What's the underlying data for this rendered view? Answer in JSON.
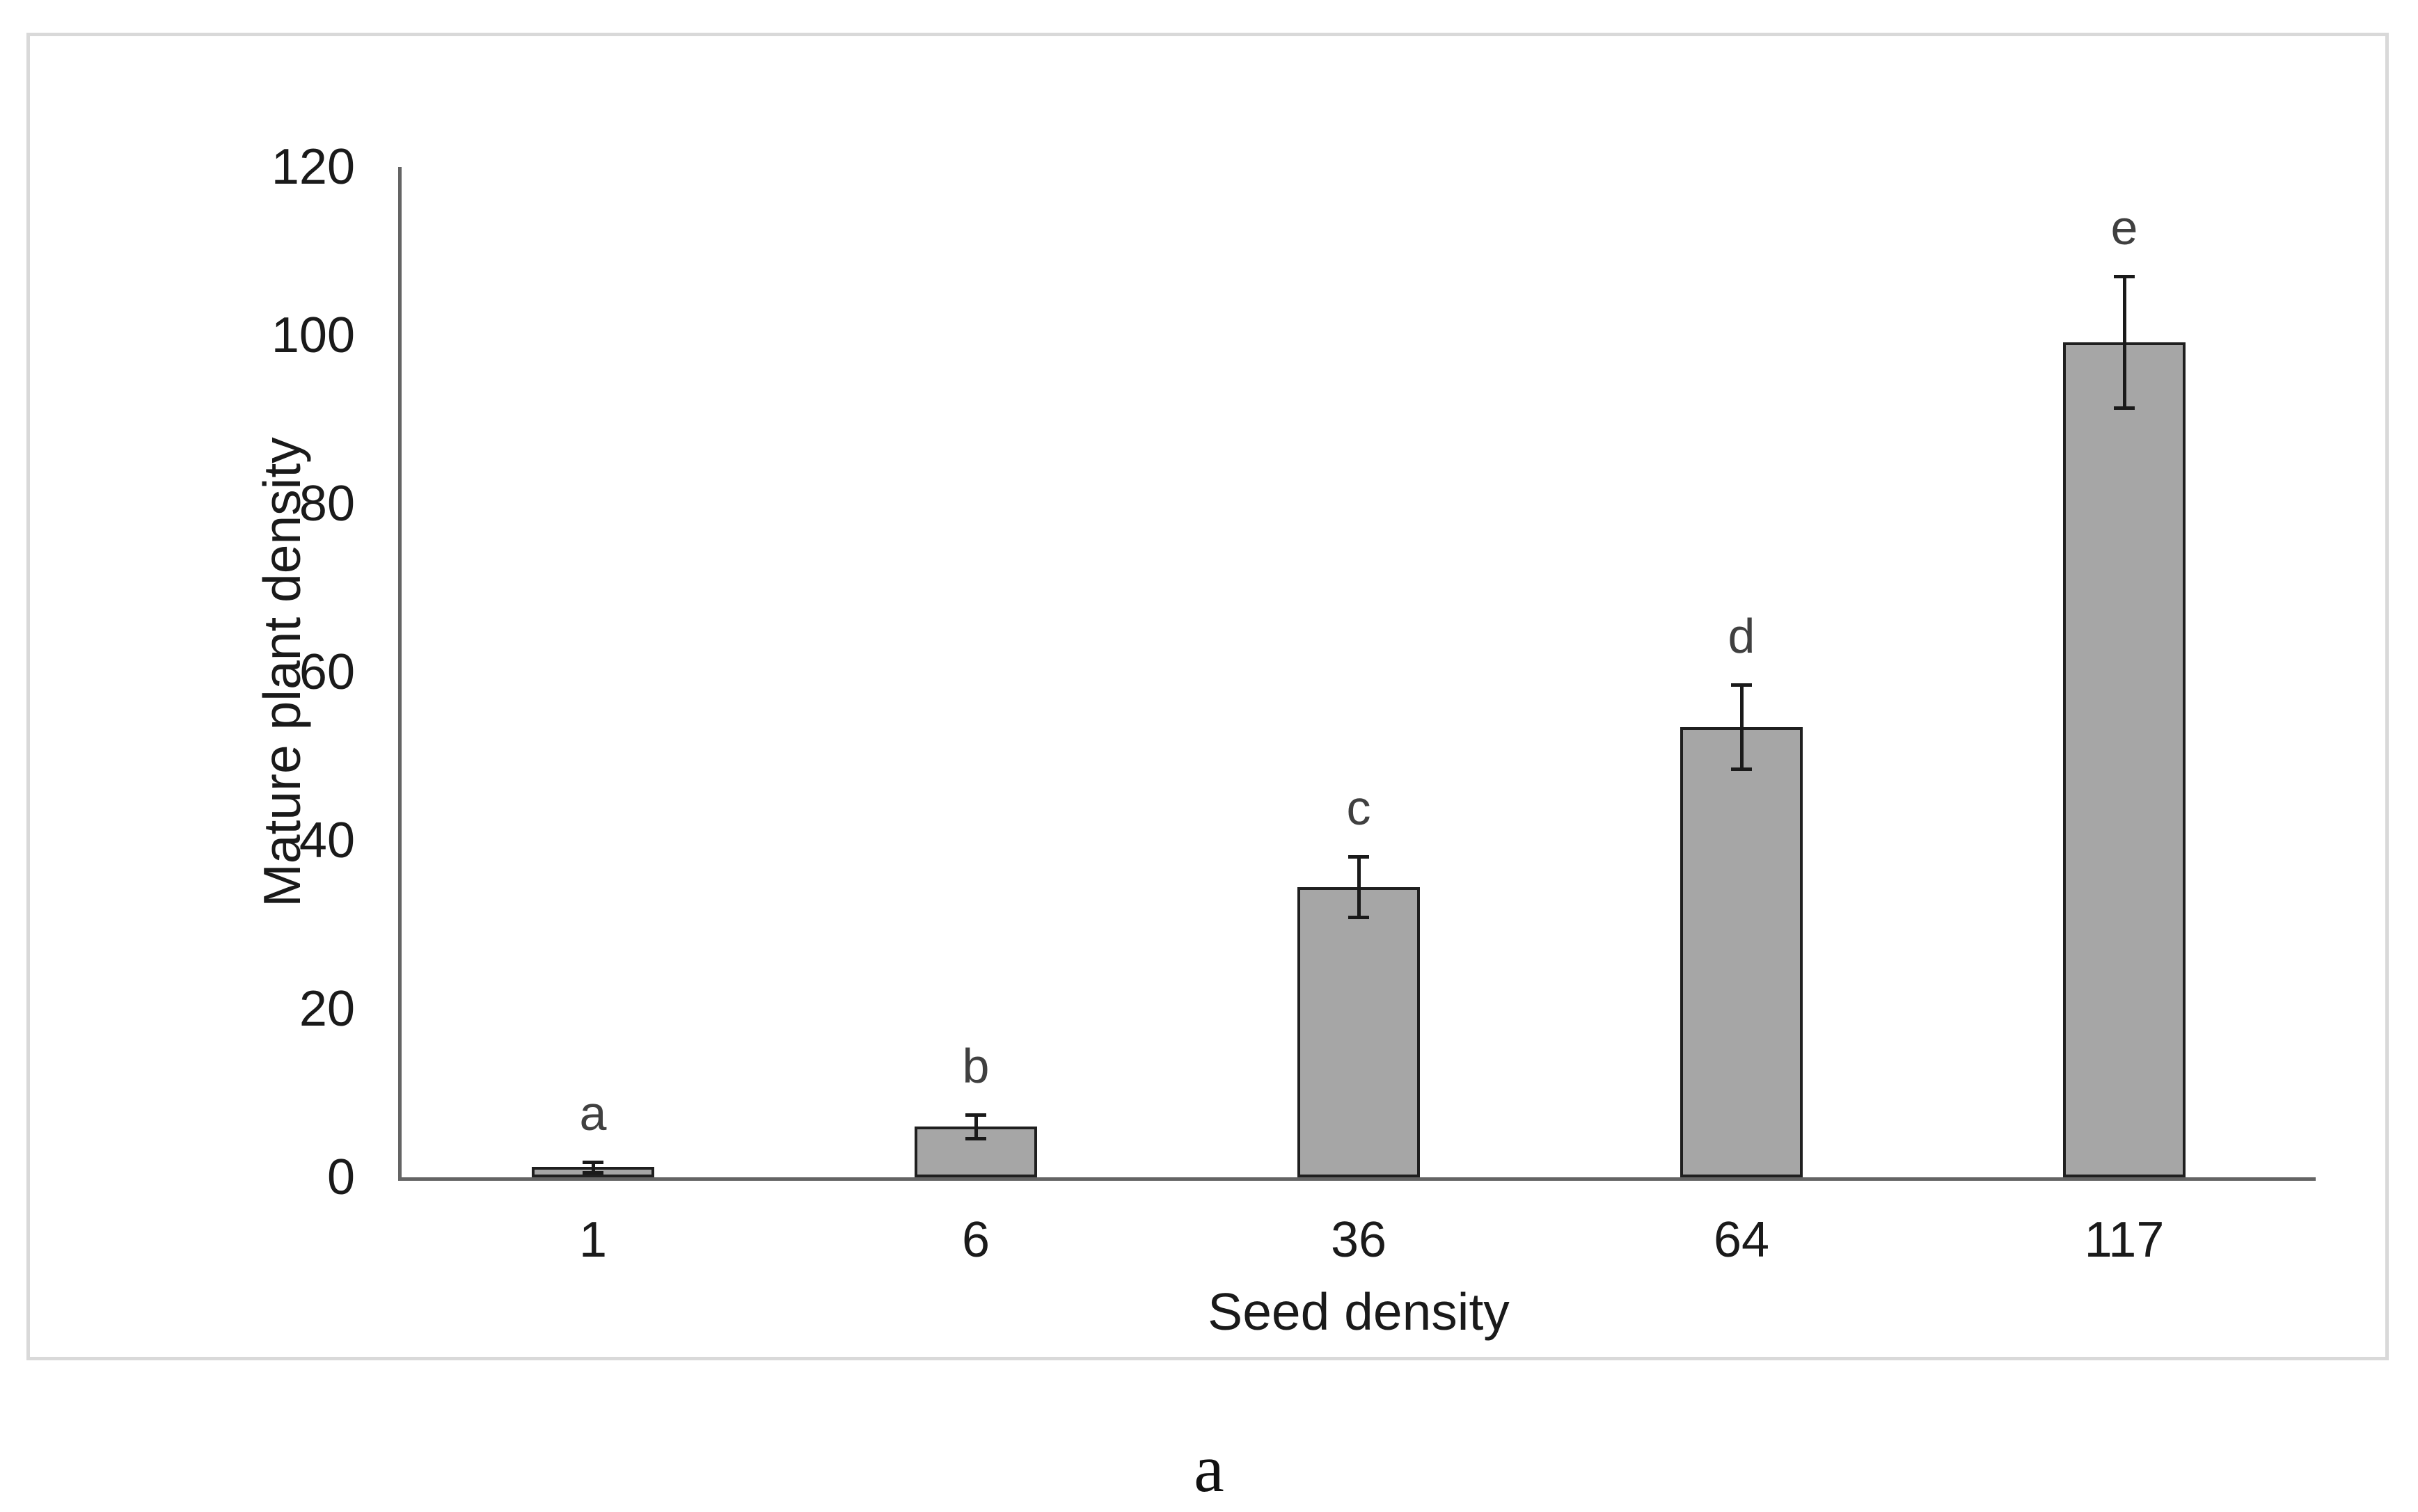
{
  "chart_data": {
    "type": "bar",
    "title": "",
    "categories": [
      "1",
      "6",
      "36",
      "64",
      "117"
    ],
    "values": [
      1.2,
      6.0,
      34.5,
      53.5,
      99.2
    ],
    "error_bars": [
      0.6,
      1.4,
      3.6,
      5.0,
      7.8
    ],
    "bar_letters": [
      "a",
      "b",
      "c",
      "d",
      "e"
    ],
    "xlabel": "Seed density",
    "ylabel": "Mature plant density",
    "ylim": [
      0,
      120
    ],
    "yticks": [
      0,
      20,
      40,
      60,
      80,
      100,
      120
    ],
    "grid": false,
    "legend": "none",
    "bar_color": "#a6a6a6",
    "bar_border_color": "#1f1f1f",
    "error_bar_color": "#1a1a1a",
    "axis_line_color": "#646464",
    "frame_border_color": "#d9d9d9",
    "letter_color": "#404040",
    "tick_label_color": "#1a1a1a"
  },
  "caption": "a"
}
